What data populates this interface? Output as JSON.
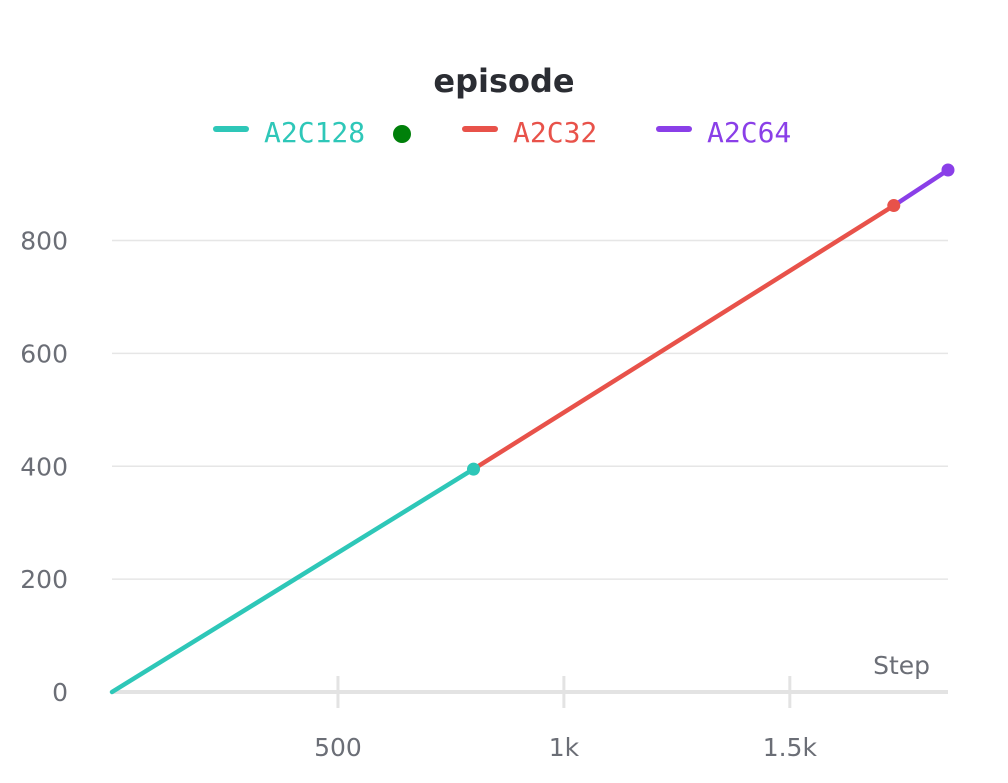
{
  "chart_data": {
    "type": "line",
    "title": "episode",
    "xlabel": "Step",
    "ylabel": "",
    "xlim": [
      0,
      1850
    ],
    "ylim": [
      0,
      925
    ],
    "x_ticks": [
      {
        "value": 500,
        "label": "500"
      },
      {
        "value": 1000,
        "label": "1k"
      },
      {
        "value": 1500,
        "label": "1.5k"
      }
    ],
    "y_ticks": [
      {
        "value": 0,
        "label": "0"
      },
      {
        "value": 200,
        "label": "200"
      },
      {
        "value": 400,
        "label": "400"
      },
      {
        "value": 600,
        "label": "600"
      },
      {
        "value": 800,
        "label": "800"
      }
    ],
    "grid": "horizontal",
    "legend_position": "top",
    "series": [
      {
        "name": "A2C128",
        "color": "#2ec7b8",
        "points": [
          [
            0,
            0
          ],
          [
            800,
            395
          ]
        ]
      },
      {
        "name": "A2C32",
        "color": "#e8524a",
        "points": [
          [
            800,
            395
          ],
          [
            1730,
            862
          ]
        ]
      },
      {
        "name": "A2C64",
        "color": "#8a3fe8",
        "points": [
          [
            1730,
            862
          ],
          [
            1850,
            925
          ]
        ]
      }
    ],
    "legend_marker_color": "#00800a"
  }
}
